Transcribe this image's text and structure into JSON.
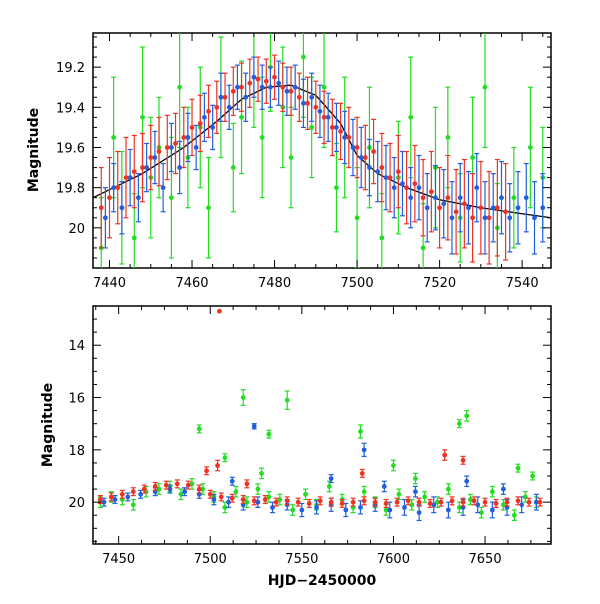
{
  "chart_data": [
    {
      "type": "scatter",
      "title": "",
      "xlabel": "",
      "ylabel": "Magnitude",
      "xlim": [
        7436,
        7547
      ],
      "ylim": [
        20.2,
        19.03
      ],
      "y_inverted": true,
      "grid": false,
      "legend": "none",
      "x_ticks": [
        7440,
        7460,
        7480,
        7500,
        7520,
        7540
      ],
      "y_ticks": [
        19.2,
        19.4,
        19.6,
        19.8,
        20
      ],
      "y_tick_labels": [
        "19.2",
        "19.4",
        "19.6",
        "19.8",
        "20"
      ],
      "errorbars": true,
      "fit_curve": {
        "color": "#000000",
        "x": [
          7436,
          7448,
          7458,
          7466,
          7472,
          7478,
          7484,
          7490,
          7496,
          7500,
          7505,
          7512,
          7520,
          7530,
          7540,
          7547
        ],
        "y": [
          19.85,
          19.73,
          19.6,
          19.47,
          19.36,
          19.3,
          19.29,
          19.34,
          19.48,
          19.64,
          19.73,
          19.8,
          19.86,
          19.9,
          19.93,
          19.95
        ]
      },
      "series": [
        {
          "color": "#22dd22",
          "x": [
            7438,
            7441,
            7443,
            7446,
            7448,
            7450,
            7452,
            7455,
            7457,
            7459,
            7462,
            7464,
            7467,
            7470,
            7472,
            7475,
            7477,
            7479,
            7482,
            7484,
            7487,
            7489,
            7492,
            7495,
            7497,
            7500,
            7503,
            7506,
            7510,
            7513,
            7516,
            7519,
            7522,
            7525,
            7528,
            7531,
            7534,
            7538,
            7542,
            7545
          ],
          "y": [
            20.1,
            19.55,
            19.9,
            20.05,
            19.45,
            19.75,
            19.6,
            19.85,
            19.3,
            19.65,
            19.5,
            19.9,
            19.35,
            19.7,
            19.45,
            19.25,
            19.55,
            19.2,
            19.4,
            19.65,
            19.15,
            19.5,
            19.3,
            19.8,
            19.55,
            19.95,
            19.6,
            20.05,
            19.75,
            19.45,
            20.1,
            19.7,
            19.55,
            19.95,
            19.65,
            19.3,
            20.0,
            19.85,
            19.6,
            19.75
          ],
          "err": [
            0.25,
            0.3,
            0.28,
            0.22,
            0.35,
            0.3,
            0.25,
            0.3,
            0.3,
            0.25,
            0.3,
            0.25,
            0.3,
            0.22,
            0.28,
            0.25,
            0.3,
            0.22,
            0.3,
            0.25,
            0.3,
            0.25,
            0.3,
            0.22,
            0.3,
            0.25,
            0.3,
            0.22,
            0.28,
            0.3,
            0.22,
            0.3,
            0.25,
            0.22,
            0.3,
            0.3,
            0.22,
            0.25,
            0.3,
            0.25
          ]
        },
        {
          "color": "#1f5fe0",
          "x": [
            7439,
            7441,
            7443,
            7445,
            7447,
            7449,
            7451,
            7453,
            7455,
            7457,
            7459,
            7461,
            7463,
            7465,
            7467,
            7469,
            7471,
            7473,
            7475,
            7477,
            7479,
            7481,
            7483,
            7485,
            7487,
            7489,
            7491,
            7493,
            7495,
            7497,
            7499,
            7501,
            7503,
            7505,
            7507,
            7509,
            7511,
            7513,
            7515,
            7517,
            7519,
            7521,
            7523,
            7525,
            7527,
            7529,
            7531,
            7533,
            7535,
            7537,
            7539,
            7541,
            7543,
            7545
          ],
          "y": [
            19.95,
            19.8,
            19.9,
            19.75,
            19.85,
            19.7,
            19.65,
            19.8,
            19.6,
            19.7,
            19.55,
            19.6,
            19.45,
            19.5,
            19.35,
            19.4,
            19.3,
            19.35,
            19.25,
            19.3,
            19.3,
            19.28,
            19.32,
            19.3,
            19.38,
            19.35,
            19.42,
            19.45,
            19.5,
            19.55,
            19.6,
            19.65,
            19.7,
            19.72,
            19.75,
            19.8,
            19.78,
            19.85,
            19.8,
            19.9,
            19.85,
            19.88,
            19.95,
            19.85,
            19.9,
            19.8,
            19.95,
            19.9,
            19.85,
            19.95,
            19.9,
            19.85,
            19.95,
            19.9
          ],
          "err": [
            0.15,
            0.12,
            0.13,
            0.14,
            0.12,
            0.12,
            0.13,
            0.12,
            0.12,
            0.13,
            0.12,
            0.11,
            0.12,
            0.11,
            0.12,
            0.11,
            0.11,
            0.12,
            0.1,
            0.11,
            0.1,
            0.11,
            0.12,
            0.11,
            0.12,
            0.12,
            0.13,
            0.12,
            0.12,
            0.13,
            0.14,
            0.15,
            0.14,
            0.15,
            0.16,
            0.15,
            0.16,
            0.15,
            0.16,
            0.17,
            0.16,
            0.17,
            0.18,
            0.17,
            0.18,
            0.17,
            0.18,
            0.17,
            0.18,
            0.17,
            0.18,
            0.17,
            0.18,
            0.17
          ]
        },
        {
          "color": "#ee3322",
          "x": [
            7438,
            7440,
            7442,
            7444,
            7446,
            7448,
            7450,
            7452,
            7454,
            7456,
            7458,
            7460,
            7462,
            7464,
            7466,
            7468,
            7470,
            7472,
            7474,
            7476,
            7478,
            7480,
            7482,
            7484,
            7486,
            7488,
            7490,
            7492,
            7494,
            7496,
            7498,
            7500,
            7502,
            7504,
            7506,
            7508,
            7510,
            7512,
            7514,
            7516,
            7518,
            7520,
            7522,
            7524,
            7526,
            7528,
            7530,
            7532,
            7534,
            7536
          ],
          "y": [
            19.9,
            19.85,
            19.8,
            19.75,
            19.72,
            19.7,
            19.65,
            19.62,
            19.6,
            19.58,
            19.55,
            19.5,
            19.48,
            19.42,
            19.4,
            19.35,
            19.32,
            19.3,
            19.28,
            19.26,
            19.27,
            19.25,
            19.3,
            19.32,
            19.35,
            19.38,
            19.4,
            19.45,
            19.5,
            19.52,
            19.55,
            19.6,
            19.65,
            19.62,
            19.7,
            19.75,
            19.72,
            19.8,
            19.78,
            19.85,
            19.82,
            19.9,
            19.85,
            19.92,
            19.88,
            19.95,
            19.9,
            19.95,
            19.9,
            19.92
          ],
          "err": [
            0.2,
            0.2,
            0.18,
            0.2,
            0.18,
            0.17,
            0.16,
            0.17,
            0.16,
            0.15,
            0.15,
            0.14,
            0.14,
            0.13,
            0.13,
            0.12,
            0.12,
            0.12,
            0.12,
            0.11,
            0.11,
            0.11,
            0.12,
            0.12,
            0.12,
            0.13,
            0.13,
            0.13,
            0.14,
            0.14,
            0.15,
            0.15,
            0.16,
            0.16,
            0.17,
            0.17,
            0.18,
            0.18,
            0.19,
            0.19,
            0.2,
            0.2,
            0.21,
            0.21,
            0.22,
            0.22,
            0.23,
            0.23,
            0.24,
            0.24
          ]
        }
      ]
    },
    {
      "type": "scatter",
      "title": "",
      "xlabel": "HJD−2450000",
      "ylabel": "Magnitude",
      "xlim": [
        7436,
        7686
      ],
      "ylim": [
        21.6,
        12.5
      ],
      "y_inverted": true,
      "grid": false,
      "legend": "none",
      "x_ticks": [
        7450,
        7500,
        7550,
        7600,
        7650
      ],
      "y_ticks": [
        14,
        16,
        18,
        20
      ],
      "y_tick_labels": [
        "14",
        "16",
        "18",
        "20"
      ],
      "errorbars": true,
      "series": [
        {
          "color": "#22dd22",
          "x": [
            7440,
            7446,
            7452,
            7458,
            7465,
            7472,
            7478,
            7484,
            7490,
            7496,
            7502,
            7508,
            7514,
            7520,
            7526,
            7532,
            7538,
            7545,
            7552,
            7558,
            7565,
            7572,
            7578,
            7584,
            7590,
            7596,
            7603,
            7610,
            7617,
            7624,
            7630,
            7636,
            7642,
            7648,
            7654,
            7660,
            7666,
            7672,
            7678,
            7494,
            7508,
            7518,
            7528,
            7532,
            7542,
            7582,
            7600,
            7612,
            7636,
            7640,
            7668,
            7676
          ],
          "y": [
            20.0,
            19.8,
            19.9,
            20.1,
            19.6,
            19.5,
            19.4,
            19.7,
            19.3,
            19.5,
            19.8,
            20.2,
            19.6,
            20.0,
            19.5,
            19.8,
            19.9,
            20.3,
            19.7,
            20.1,
            19.4,
            19.9,
            20.2,
            19.6,
            20.0,
            20.3,
            19.7,
            20.1,
            19.8,
            20.0,
            19.5,
            20.2,
            19.9,
            20.4,
            19.6,
            20.1,
            20.5,
            19.8,
            20.0,
            17.2,
            18.3,
            16.0,
            18.9,
            17.4,
            16.1,
            17.3,
            18.6,
            19.1,
            17.0,
            16.7,
            18.7,
            19.0
          ],
          "err": [
            0.2,
            0.2,
            0.2,
            0.2,
            0.2,
            0.2,
            0.2,
            0.2,
            0.2,
            0.2,
            0.2,
            0.2,
            0.2,
            0.2,
            0.2,
            0.2,
            0.2,
            0.2,
            0.2,
            0.2,
            0.2,
            0.2,
            0.2,
            0.2,
            0.2,
            0.2,
            0.2,
            0.2,
            0.2,
            0.2,
            0.2,
            0.2,
            0.2,
            0.2,
            0.2,
            0.2,
            0.2,
            0.2,
            0.2,
            0.15,
            0.15,
            0.3,
            0.2,
            0.15,
            0.35,
            0.25,
            0.2,
            0.2,
            0.15,
            0.2,
            0.15,
            0.15
          ]
        },
        {
          "color": "#1f5fe0",
          "x": [
            7442,
            7448,
            7455,
            7462,
            7470,
            7478,
            7486,
            7494,
            7502,
            7510,
            7518,
            7526,
            7534,
            7542,
            7550,
            7558,
            7566,
            7574,
            7582,
            7590,
            7598,
            7606,
            7614,
            7622,
            7630,
            7638,
            7646,
            7654,
            7662,
            7670,
            7678,
            7512,
            7524,
            7566,
            7584,
            7595,
            7612,
            7640,
            7660
          ],
          "y": [
            20.0,
            19.9,
            19.8,
            19.7,
            19.6,
            19.5,
            19.6,
            19.7,
            19.9,
            20.0,
            20.1,
            20.0,
            20.2,
            20.1,
            20.3,
            20.2,
            20.1,
            20.3,
            20.2,
            20.1,
            20.3,
            20.2,
            20.4,
            20.1,
            20.3,
            20.2,
            20.1,
            20.3,
            20.2,
            20.1,
            20.0,
            19.2,
            17.1,
            19.1,
            18.0,
            19.4,
            19.6,
            19.2,
            19.5
          ],
          "err": [
            0.15,
            0.15,
            0.15,
            0.15,
            0.15,
            0.15,
            0.15,
            0.15,
            0.2,
            0.2,
            0.2,
            0.2,
            0.2,
            0.2,
            0.25,
            0.25,
            0.25,
            0.25,
            0.25,
            0.25,
            0.3,
            0.3,
            0.3,
            0.3,
            0.3,
            0.3,
            0.3,
            0.3,
            0.3,
            0.3,
            0.3,
            0.15,
            0.1,
            0.15,
            0.25,
            0.2,
            0.2,
            0.2,
            0.2
          ]
        },
        {
          "color": "#ee3322",
          "x": [
            7440,
            7446,
            7452,
            7458,
            7464,
            7470,
            7476,
            7482,
            7488,
            7494,
            7500,
            7506,
            7512,
            7518,
            7524,
            7530,
            7536,
            7542,
            7548,
            7554,
            7560,
            7566,
            7572,
            7578,
            7584,
            7590,
            7596,
            7602,
            7608,
            7614,
            7620,
            7626,
            7632,
            7638,
            7644,
            7650,
            7656,
            7662,
            7668,
            7674,
            7680,
            7505,
            7498,
            7504,
            7628,
            7638,
            7583,
            7520
          ],
          "y": [
            19.9,
            19.8,
            19.7,
            19.6,
            19.5,
            19.4,
            19.35,
            19.3,
            19.35,
            19.5,
            19.7,
            19.8,
            19.85,
            19.9,
            19.95,
            19.9,
            20.0,
            19.95,
            20.0,
            20.05,
            19.95,
            20.0,
            20.05,
            20.0,
            19.95,
            20.0,
            20.05,
            20.0,
            19.95,
            20.0,
            20.05,
            20.0,
            19.95,
            20.0,
            19.95,
            20.0,
            20.05,
            20.0,
            19.95,
            20.0,
            20.0,
            12.7,
            18.8,
            18.6,
            18.2,
            18.4,
            18.9,
            19.3
          ],
          "err": [
            0.15,
            0.15,
            0.15,
            0.15,
            0.15,
            0.15,
            0.15,
            0.15,
            0.15,
            0.15,
            0.15,
            0.15,
            0.15,
            0.15,
            0.15,
            0.15,
            0.15,
            0.15,
            0.15,
            0.15,
            0.15,
            0.15,
            0.15,
            0.15,
            0.15,
            0.15,
            0.15,
            0.15,
            0.15,
            0.15,
            0.15,
            0.15,
            0.15,
            0.15,
            0.15,
            0.15,
            0.15,
            0.15,
            0.15,
            0.15,
            0.15,
            0.0,
            0.15,
            0.2,
            0.2,
            0.15,
            0.15,
            0.15
          ]
        }
      ]
    }
  ]
}
